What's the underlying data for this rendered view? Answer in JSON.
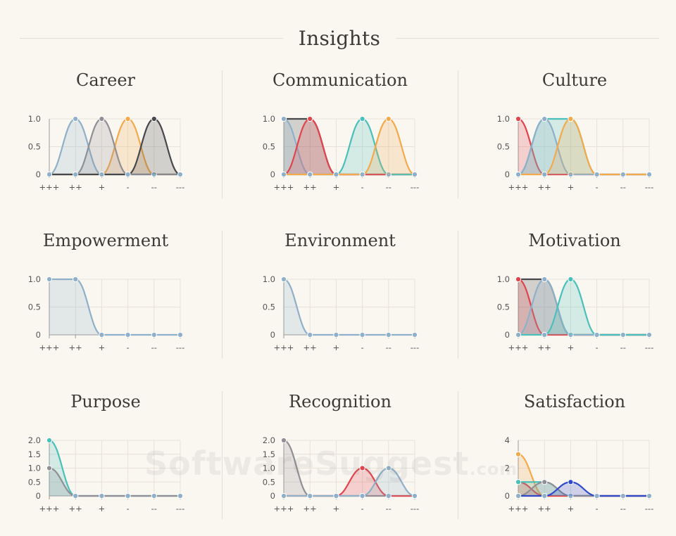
{
  "header": {
    "title": "Insights"
  },
  "colors": {
    "red": "#e0454e",
    "teal": "#4bbfb9",
    "orange": "#f2aa4c",
    "gray": "#8f8f95",
    "dark": "#46484b",
    "blue": "#8fb0c8",
    "blue_dark": "#2f49c9",
    "grid": "#e6e2da",
    "axis": "#9a9a9a"
  },
  "chart_data": [
    {
      "type": "area",
      "title": "Career",
      "categories": [
        "+++",
        "++",
        "+",
        "-",
        "--",
        "---"
      ],
      "ylim": [
        0,
        1
      ],
      "yticks": [
        "0",
        "0.5",
        "1.0"
      ],
      "series": [
        {
          "color": "blue",
          "values": [
            0,
            1,
            0,
            0,
            0,
            0
          ]
        },
        {
          "color": "orange",
          "values": [
            0,
            0,
            0,
            1,
            0,
            0
          ]
        },
        {
          "color": "gray",
          "values": [
            0,
            0,
            1,
            0,
            0,
            0
          ]
        },
        {
          "color": "dark",
          "values": [
            0,
            0,
            0,
            0,
            1,
            0
          ]
        }
      ]
    },
    {
      "type": "area",
      "title": "Communication",
      "categories": [
        "+++",
        "++",
        "+",
        "-",
        "--",
        "---"
      ],
      "ylim": [
        0,
        1
      ],
      "yticks": [
        "0",
        "0.5",
        "1.0"
      ],
      "series": [
        {
          "color": "dark",
          "values": [
            1,
            1,
            0,
            0,
            0,
            0
          ]
        },
        {
          "color": "blue",
          "values": [
            1,
            0,
            0,
            0,
            0,
            0
          ]
        },
        {
          "color": "red",
          "values": [
            0,
            1,
            0,
            0,
            0,
            0
          ]
        },
        {
          "color": "teal",
          "values": [
            0,
            0,
            0,
            1,
            0,
            0
          ]
        },
        {
          "color": "orange",
          "values": [
            0,
            0,
            0,
            0,
            1,
            0
          ]
        }
      ]
    },
    {
      "type": "area",
      "title": "Culture",
      "categories": [
        "+++",
        "++",
        "+",
        "-",
        "--",
        "---"
      ],
      "ylim": [
        0,
        1
      ],
      "yticks": [
        "0",
        "0.5",
        "1.0"
      ],
      "series": [
        {
          "color": "red",
          "values": [
            1,
            0,
            0,
            0,
            0,
            0
          ]
        },
        {
          "color": "teal",
          "values": [
            0,
            1,
            1,
            0,
            0,
            0
          ]
        },
        {
          "color": "blue",
          "values": [
            0,
            1,
            0,
            0,
            0,
            0
          ]
        },
        {
          "color": "orange",
          "values": [
            0,
            0,
            1,
            0,
            0,
            0
          ]
        }
      ]
    },
    {
      "type": "area",
      "title": "Empowerment",
      "categories": [
        "+++",
        "++",
        "+",
        "-",
        "--",
        "---"
      ],
      "ylim": [
        0,
        1
      ],
      "yticks": [
        "0",
        "0.5",
        "1.0"
      ],
      "series": [
        {
          "color": "blue",
          "values": [
            1,
            1,
            0,
            0,
            0,
            0
          ]
        }
      ]
    },
    {
      "type": "area",
      "title": "Environment",
      "categories": [
        "+++",
        "++",
        "+",
        "-",
        "--",
        "---"
      ],
      "ylim": [
        0,
        1
      ],
      "yticks": [
        "0",
        "0.5",
        "1.0"
      ],
      "series": [
        {
          "color": "blue",
          "values": [
            1,
            0,
            0,
            0,
            0,
            0
          ]
        }
      ]
    },
    {
      "type": "area",
      "title": "Motivation",
      "categories": [
        "+++",
        "++",
        "+",
        "-",
        "--",
        "---"
      ],
      "ylim": [
        0,
        1
      ],
      "yticks": [
        "0",
        "0.5",
        "1.0"
      ],
      "series": [
        {
          "color": "dark",
          "values": [
            1,
            1,
            0,
            0,
            0,
            0
          ]
        },
        {
          "color": "red",
          "values": [
            1,
            0,
            0,
            0,
            0,
            0
          ]
        },
        {
          "color": "blue",
          "values": [
            0,
            1,
            0,
            0,
            0,
            0
          ]
        },
        {
          "color": "teal",
          "values": [
            0,
            0,
            1,
            0,
            0,
            0
          ]
        }
      ]
    },
    {
      "type": "area",
      "title": "Purpose",
      "categories": [
        "+++",
        "++",
        "+",
        "-",
        "--",
        "---"
      ],
      "ylim": [
        0,
        2
      ],
      "yticks": [
        "0",
        "0.5",
        "1.0",
        "1.5",
        "2.0"
      ],
      "series": [
        {
          "color": "teal",
          "values": [
            2,
            0,
            0,
            0,
            0,
            0
          ]
        },
        {
          "color": "gray",
          "values": [
            1,
            0,
            0,
            0,
            0,
            0
          ]
        }
      ]
    },
    {
      "type": "area",
      "title": "Recognition",
      "categories": [
        "+++",
        "++",
        "+",
        "-",
        "--",
        "---"
      ],
      "ylim": [
        0,
        2
      ],
      "yticks": [
        "0",
        "0.5",
        "1.0",
        "1.5",
        "2.0"
      ],
      "series": [
        {
          "color": "gray",
          "values": [
            2,
            0,
            0,
            0,
            0,
            0
          ]
        },
        {
          "color": "red",
          "values": [
            0,
            0,
            0,
            1,
            0,
            0
          ]
        },
        {
          "color": "blue",
          "values": [
            0,
            0,
            0,
            0,
            1,
            0
          ]
        }
      ]
    },
    {
      "type": "area",
      "title": "Satisfaction",
      "categories": [
        "+++",
        "++",
        "+",
        "-",
        "--",
        "---"
      ],
      "ylim": [
        0,
        4
      ],
      "yticks": [
        "0",
        "2",
        "4"
      ],
      "series": [
        {
          "color": "orange",
          "values": [
            3,
            0,
            0,
            0,
            0,
            0
          ]
        },
        {
          "color": "red",
          "values": [
            1,
            0,
            0,
            0,
            0,
            0
          ]
        },
        {
          "color": "teal",
          "values": [
            1,
            1,
            0,
            0,
            0,
            0
          ]
        },
        {
          "color": "gray",
          "values": [
            0,
            1,
            0,
            0,
            0,
            0
          ]
        },
        {
          "color": "blue_dark",
          "values": [
            0,
            0,
            1,
            0,
            0,
            0
          ]
        }
      ]
    }
  ],
  "watermark": {
    "text": "SoftwareSuggest",
    "suffix": ".com"
  }
}
